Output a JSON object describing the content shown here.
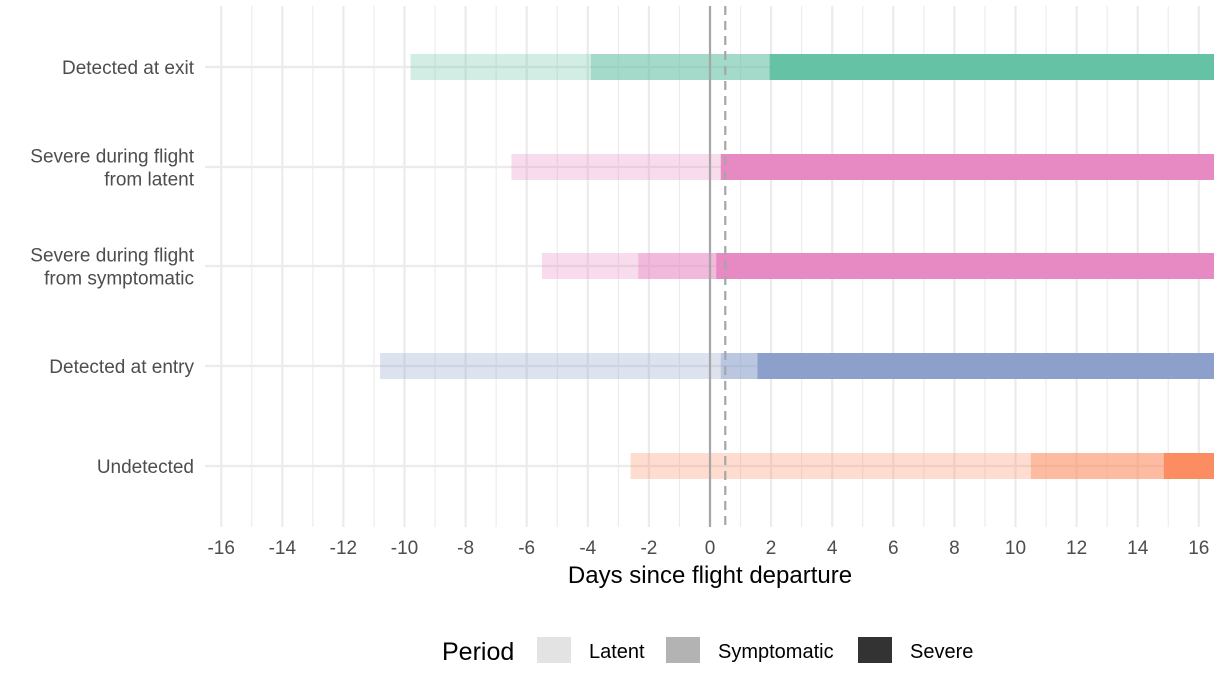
{
  "chart_data": {
    "type": "bar",
    "orientation": "horizontal-ranges",
    "title": "",
    "xlabel": "Days since flight departure",
    "ylabel": "",
    "xlim": [
      -16.5,
      16.5
    ],
    "x_ticks": [
      -16,
      -14,
      -12,
      -10,
      -8,
      -6,
      -4,
      -2,
      0,
      2,
      4,
      6,
      8,
      10,
      12,
      14,
      16
    ],
    "x_tick_labels": [
      "-16",
      "-14",
      "-12",
      "-10",
      "-8",
      "-6",
      "-4",
      "-2",
      "0",
      "2",
      "4",
      "6",
      "8",
      "10",
      "12",
      "14",
      "16"
    ],
    "grid": true,
    "reference_lines": [
      {
        "x": 0,
        "style": "solid"
      },
      {
        "x": 0.5,
        "style": "dashed"
      }
    ],
    "categories": [
      {
        "lines": [
          "Detected at exit"
        ]
      },
      {
        "lines": [
          "Severe during flight",
          "from latent"
        ]
      },
      {
        "lines": [
          "Severe during flight",
          "from symptomatic"
        ]
      },
      {
        "lines": [
          "Detected at entry"
        ]
      },
      {
        "lines": [
          "Undetected"
        ]
      }
    ],
    "series": [
      {
        "category": "Detected at exit",
        "color": "#66c2a5",
        "periods": [
          {
            "period": "Latent",
            "start": -9.8,
            "end": -3.9
          },
          {
            "period": "Symptomatic",
            "start": -3.9,
            "end": 1.95
          },
          {
            "period": "Severe",
            "start": 1.95,
            "end": 16.5
          }
        ]
      },
      {
        "category": "Severe during flight from latent",
        "color": "#e78ac3",
        "periods": [
          {
            "period": "Latent",
            "start": -6.5,
            "end": 0.35
          },
          {
            "period": "Severe",
            "start": 0.35,
            "end": 16.5
          }
        ]
      },
      {
        "category": "Severe during flight from symptomatic",
        "color": "#e78ac3",
        "periods": [
          {
            "period": "Latent",
            "start": -5.5,
            "end": -2.35
          },
          {
            "period": "Symptomatic",
            "start": -2.35,
            "end": 0.2
          },
          {
            "period": "Severe",
            "start": 0.2,
            "end": 16.5
          }
        ]
      },
      {
        "category": "Detected at entry",
        "color": "#8da0cb",
        "periods": [
          {
            "period": "Latent",
            "start": -10.8,
            "end": 0.35
          },
          {
            "period": "Symptomatic",
            "start": 0.35,
            "end": 1.55
          },
          {
            "period": "Severe",
            "start": 1.55,
            "end": 16.5
          }
        ]
      },
      {
        "category": "Undetected",
        "color": "#fc8d62",
        "periods": [
          {
            "period": "Latent",
            "start": -2.6,
            "end": 10.5
          },
          {
            "period": "Symptomatic",
            "start": 10.5,
            "end": 14.85
          },
          {
            "period": "Severe",
            "start": 14.85,
            "end": 16.5
          }
        ]
      }
    ],
    "legend": {
      "title": "Period",
      "position": "bottom",
      "items": [
        {
          "label": "Latent",
          "color": "#e3e3e3"
        },
        {
          "label": "Symptomatic",
          "color": "#b3b3b3"
        },
        {
          "label": "Severe",
          "color": "#333333"
        }
      ]
    },
    "period_opacity": {
      "Latent": 0.3,
      "Symptomatic": 0.6,
      "Severe": 1.0
    }
  }
}
